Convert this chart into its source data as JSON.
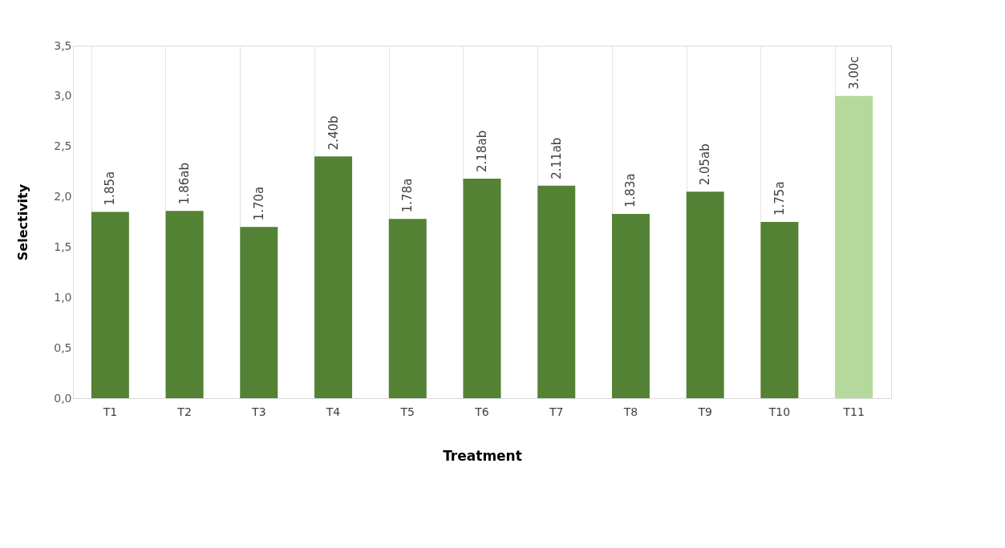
{
  "chart_data": {
    "type": "bar",
    "xlabel": "Treatment",
    "ylabel": "Selectivity",
    "categories": [
      "T1",
      "T2",
      "T3",
      "T4",
      "T5",
      "T6",
      "T7",
      "T8",
      "T9",
      "T10",
      "T11"
    ],
    "values": [
      1.85,
      1.86,
      1.7,
      2.4,
      1.78,
      2.18,
      2.11,
      1.83,
      2.05,
      1.75,
      3.0
    ],
    "value_labels": [
      "1.85a",
      "1.86ab",
      "1.70a",
      "2.40b",
      "1.78a",
      "2.18ab",
      "2.11ab",
      "1.83a",
      "2.05ab",
      "1.75a",
      "3.00c"
    ],
    "colors": [
      "#548235",
      "#548235",
      "#548235",
      "#548235",
      "#548235",
      "#548235",
      "#548235",
      "#548235",
      "#548235",
      "#548235",
      "#b5d99c"
    ],
    "ylim": [
      0,
      3.5
    ],
    "yticks": [
      {
        "value": 0,
        "label": "0,0"
      },
      {
        "value": 0.5,
        "label": "0,5"
      },
      {
        "value": 1,
        "label": "1,0"
      },
      {
        "value": 1.5,
        "label": "1,5"
      },
      {
        "value": 2,
        "label": "2,0"
      },
      {
        "value": 2.5,
        "label": "2,5"
      },
      {
        "value": 3,
        "label": "3,0"
      },
      {
        "value": 3.5,
        "label": "3,5"
      }
    ],
    "grid": "x"
  }
}
